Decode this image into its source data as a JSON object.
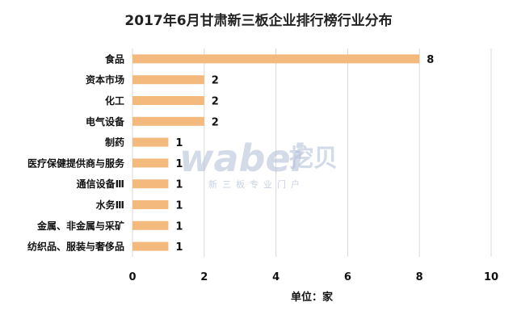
{
  "chart_data": {
    "type": "bar",
    "orientation": "horizontal",
    "title": "2017年6月甘肃新三板企业排行榜行业分布",
    "categories": [
      "食品",
      "资本市场",
      "化工",
      "电气设备",
      "制药",
      "医疗保健提供商与服务",
      "通信设备Ⅲ",
      "水务Ⅲ",
      "金属、非金属与采矿",
      "纺织品、服装与奢侈品"
    ],
    "values": [
      8,
      2,
      2,
      2,
      1,
      1,
      1,
      1,
      1,
      1
    ],
    "xlabel": "单位：家",
    "ylabel": "",
    "xlim": [
      0,
      10
    ],
    "xticks": [
      0,
      2,
      4,
      6,
      8,
      10
    ],
    "grid": true,
    "bar_color": "#F4B97C",
    "data_labels": true
  },
  "watermark": {
    "brand": "wabei",
    "brand_cn": "挖贝",
    "tagline": "新三板专业门户"
  }
}
